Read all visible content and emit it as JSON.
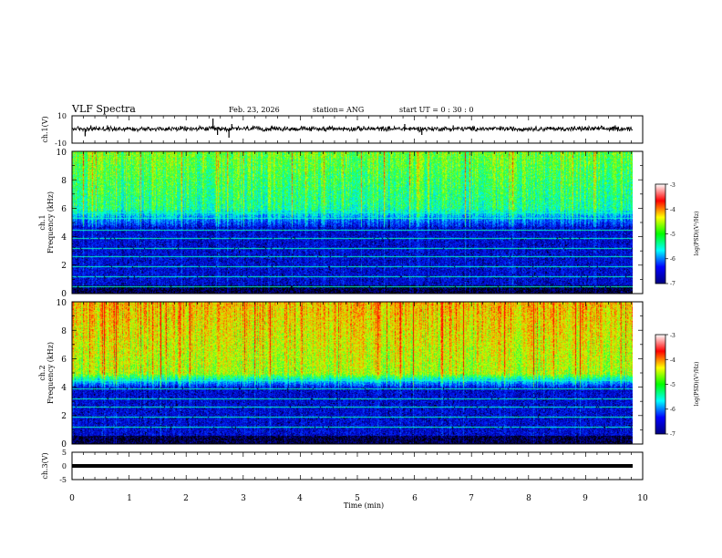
{
  "header": {
    "title": "VLF Spectra",
    "date": "Feb. 23, 2026",
    "station": "station= ANG",
    "start": "start  UT =   0 : 30 : 0"
  },
  "colors": {
    "spec_stops": [
      "#000000",
      "#0000aa",
      "#0022ff",
      "#00a0ff",
      "#00ffdd",
      "#33ff33",
      "#c8ff00",
      "#ff9900",
      "#ff0000"
    ],
    "colorbar": [
      "#00007f",
      "#0000ff",
      "#00ffff",
      "#00ff00",
      "#ffff00",
      "#ff0000",
      "#ffffff"
    ]
  },
  "chart_data": [
    {
      "type": "line",
      "name": "ch1-waveform",
      "ylabel": "ch.1(V)",
      "ylim": [
        -10,
        10
      ],
      "ytick_labels": [
        "10",
        "-10"
      ],
      "xlim": [
        0,
        10
      ],
      "x_extent_min": 9.83,
      "baseline_v": 0.5,
      "noise_amplitude_v": 1.5,
      "spikes": [
        {
          "t": 0.23,
          "v": -5
        },
        {
          "t": 0.33,
          "v": 3
        },
        {
          "t": 0.62,
          "v": 3
        },
        {
          "t": 2.47,
          "v": 8
        },
        {
          "t": 2.55,
          "v": -4
        },
        {
          "t": 2.75,
          "v": -6
        },
        {
          "t": 2.8,
          "v": 4
        },
        {
          "t": 5.83,
          "v": 4
        },
        {
          "t": 6.13,
          "v": -4
        },
        {
          "t": 6.68,
          "v": 3
        },
        {
          "t": 9.52,
          "v": 3
        }
      ]
    },
    {
      "type": "heatmap",
      "name": "ch1-spectrogram",
      "ylabel": "ch.1 Frequency (kHz)",
      "ylabel_line1": "ch.1",
      "ylabel_line2": "Frequency  (kHz)",
      "ylim": [
        0,
        10
      ],
      "ytick_labels": [
        "0",
        "2",
        "4",
        "6",
        "8",
        "10"
      ],
      "xlim": [
        0,
        10
      ],
      "x_extent_min": 9.83,
      "upper_band_khz": [
        6,
        10
      ],
      "upper_band_level": 0.55,
      "transition_khz": [
        4.7,
        6
      ],
      "lines_khz": [
        0.5,
        1.2,
        1.9,
        2.6,
        3.2,
        3.9,
        4.5,
        5.3,
        5.7
      ],
      "colorbar": {
        "label": "log(PSD)(V²/Hz)",
        "range": [
          -7,
          -3
        ],
        "tick_labels": [
          "-3",
          "-4",
          "-5",
          "-6",
          "-7"
        ]
      }
    },
    {
      "type": "heatmap",
      "name": "ch2-spectrogram",
      "ylabel": "ch.2 Frequency (kHz)",
      "ylabel_line1": "ch.2",
      "ylabel_line2": "Frequency  (kHz)",
      "ylim": [
        0,
        10
      ],
      "ytick_labels": [
        "0",
        "2",
        "4",
        "6",
        "8",
        "10"
      ],
      "xlim": [
        0,
        10
      ],
      "x_extent_min": 9.83,
      "upper_band_khz": [
        5,
        10
      ],
      "upper_band_level": 0.72,
      "transition_khz": [
        4,
        5
      ],
      "lines_khz": [
        1.2,
        1.9,
        2.6,
        3.2,
        3.9,
        4.5
      ],
      "colorbar": {
        "label": "log(PSD)(V²/Hz)",
        "range": [
          -7,
          -3
        ],
        "tick_labels": [
          "-3",
          "-4",
          "-5",
          "-6",
          "-7"
        ]
      }
    },
    {
      "type": "line",
      "name": "ch3-waveform",
      "ylabel": "ch.3(V)",
      "ylim": [
        -5,
        5
      ],
      "ytick_labels": [
        "5",
        "0",
        "-5"
      ],
      "xlim": [
        0,
        10
      ],
      "x_extent_min": 9.83,
      "level_v": 0,
      "xlabel": "Time  (min)",
      "xtick_labels": [
        "0",
        "1",
        "2",
        "3",
        "4",
        "5",
        "6",
        "7",
        "8",
        "9",
        "10"
      ]
    }
  ]
}
